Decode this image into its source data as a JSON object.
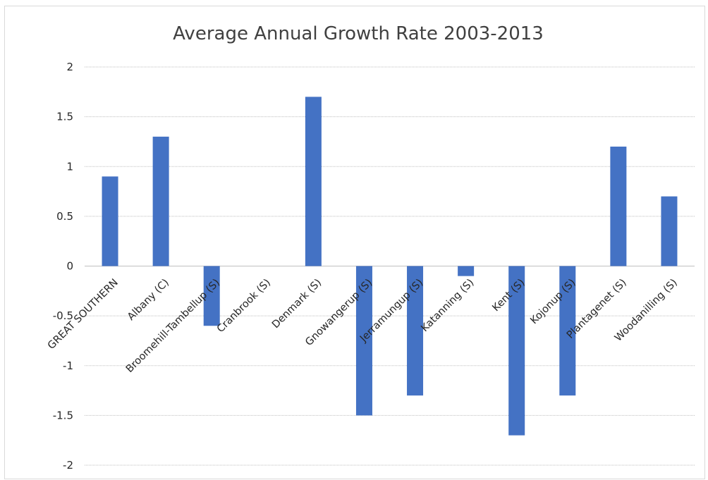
{
  "chart_data": {
    "type": "bar",
    "title": "Average Annual Growth Rate 2003-2013",
    "xlabel": "",
    "ylabel": "",
    "ylim": [
      -2,
      2
    ],
    "yticks": [
      2,
      1.5,
      1,
      0.5,
      0,
      -0.5,
      -1,
      -1.5,
      -2
    ],
    "grid": true,
    "legend": "none",
    "bar_color": "#4472c4",
    "categories": [
      "GREAT SOUTHERN",
      "Albany (C)",
      "Broomehill-Tambellup (S)",
      "Cranbrook (S)",
      "Denmark (S)",
      "Gnowangerup (S)",
      "Jerramungup (S)",
      "Katanning (S)",
      "Kent (S)",
      "Kojonup (S)",
      "Plantagenet (S)",
      "Woodanilling (S)"
    ],
    "values": [
      0.9,
      1.3,
      -0.6,
      0,
      1.7,
      -1.5,
      -1.3,
      -0.1,
      -1.7,
      -1.3,
      1.2,
      0.7
    ]
  }
}
